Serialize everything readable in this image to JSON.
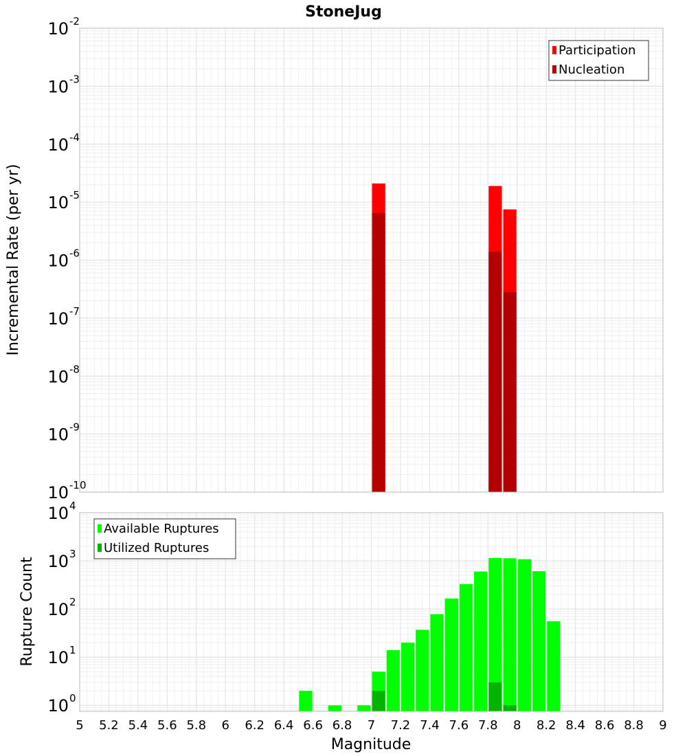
{
  "chart_data": {
    "title": "StoneJug",
    "xlabel": "Magnitude",
    "x_range": [
      5,
      9
    ],
    "x_ticks": [
      "5",
      "5.2",
      "5.4",
      "5.6",
      "5.8",
      "6",
      "6.2",
      "6.4",
      "6.6",
      "6.8",
      "7",
      "7.2",
      "7.4",
      "7.6",
      "7.8",
      "8",
      "8.2",
      "8.4",
      "8.6",
      "8.8",
      "9"
    ],
    "panels": [
      {
        "type": "bar",
        "ylabel": "Incremental Rate (per yr)",
        "yscale": "log",
        "ylim": [
          1e-10,
          0.01
        ],
        "y_tick_exponents": [
          -10,
          -9,
          -8,
          -7,
          -6,
          -5,
          -4,
          -3,
          -2
        ],
        "legend_position": "top-right",
        "series": [
          {
            "name": "Participation",
            "color": "#ff0000",
            "points": [
              {
                "x": 7.05,
                "y": 2.1e-05
              },
              {
                "x": 7.85,
                "y": 1.9e-05
              },
              {
                "x": 7.95,
                "y": 7.5e-06
              }
            ]
          },
          {
            "name": "Nucleation",
            "color": "#b40000",
            "points": [
              {
                "x": 7.05,
                "y": 6.5e-06
              },
              {
                "x": 7.85,
                "y": 1.4e-06
              },
              {
                "x": 7.95,
                "y": 2.8e-07
              }
            ]
          }
        ]
      },
      {
        "type": "bar",
        "ylabel": "Rupture Count",
        "yscale": "log",
        "ylim": [
          0.75,
          10000
        ],
        "y_tick_exponents": [
          0,
          1,
          2,
          3,
          4
        ],
        "legend_position": "top-left",
        "series": [
          {
            "name": "Available Ruptures",
            "color": "#00ff00",
            "points": [
              {
                "x": 6.55,
                "y": 2
              },
              {
                "x": 6.75,
                "y": 1
              },
              {
                "x": 6.95,
                "y": 1
              },
              {
                "x": 7.05,
                "y": 5
              },
              {
                "x": 7.15,
                "y": 14
              },
              {
                "x": 7.25,
                "y": 20
              },
              {
                "x": 7.35,
                "y": 37
              },
              {
                "x": 7.45,
                "y": 78
              },
              {
                "x": 7.55,
                "y": 165
              },
              {
                "x": 7.65,
                "y": 330
              },
              {
                "x": 7.75,
                "y": 600
              },
              {
                "x": 7.85,
                "y": 1150
              },
              {
                "x": 7.95,
                "y": 1130
              },
              {
                "x": 8.05,
                "y": 1080
              },
              {
                "x": 8.15,
                "y": 610
              },
              {
                "x": 8.25,
                "y": 56
              }
            ]
          },
          {
            "name": "Utilized Ruptures",
            "color": "#00b400",
            "points": [
              {
                "x": 7.05,
                "y": 2
              },
              {
                "x": 7.85,
                "y": 3
              },
              {
                "x": 7.95,
                "y": 1
              }
            ]
          }
        ]
      }
    ]
  }
}
